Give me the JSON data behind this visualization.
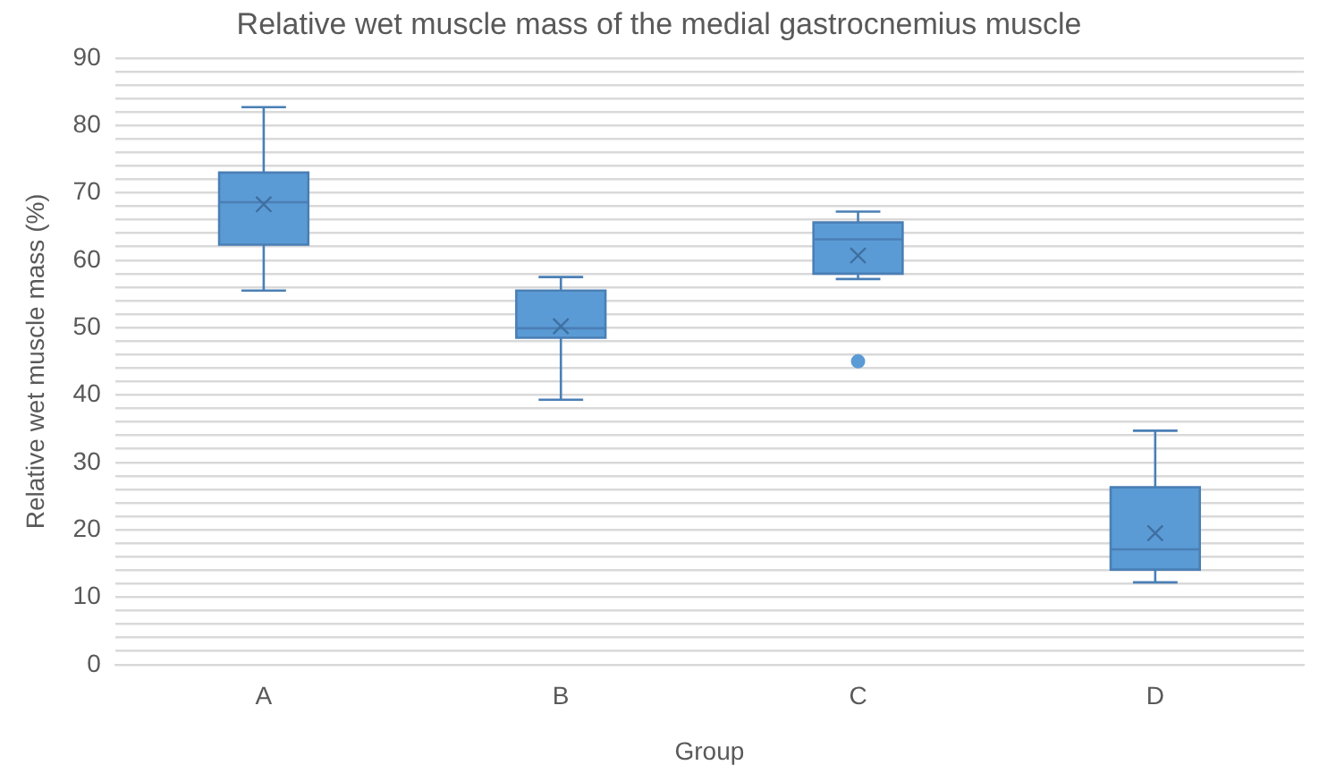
{
  "chart_data": {
    "type": "box",
    "title": "Relative wet muscle mass of the medial gastrocnemius muscle",
    "xlabel": "Group",
    "ylabel": "Relative wet muscle mass (%)",
    "categories": [
      "A",
      "B",
      "C",
      "D"
    ],
    "series": [
      {
        "color": "#5b9bd5",
        "boxes": [
          {
            "low": 55.5,
            "q1": 62.3,
            "median": 68.6,
            "q3": 73,
            "high": 82.7,
            "mean": 68.3
          },
          {
            "low": 39.3,
            "q1": 48.5,
            "median": 49.9,
            "q3": 55.5,
            "high": 57.5,
            "mean": 50.2
          },
          {
            "low": 57.2,
            "q1": 58,
            "median": 63.1,
            "q3": 65.6,
            "high": 67.2,
            "mean": 60.7,
            "outliers": [
              45
            ]
          },
          {
            "low": 12.2,
            "q1": 14.1,
            "median": 17.1,
            "q3": 26.3,
            "high": 34.7,
            "mean": 19.5
          }
        ]
      }
    ],
    "ylim": [
      0,
      90
    ],
    "yticks": [
      0,
      {
        "value": 2,
        "label": null
      },
      {
        "value": 4,
        "label": null
      },
      {
        "value": 6,
        "label": null
      },
      {
        "value": 8,
        "label": null
      },
      10,
      {
        "value": 12,
        "label": null
      },
      {
        "value": 14,
        "label": null
      },
      {
        "value": 16,
        "label": null
      },
      {
        "value": 18,
        "label": null
      },
      20,
      {
        "value": 22,
        "label": null
      },
      {
        "value": 24,
        "label": null
      },
      {
        "value": 26,
        "label": null
      },
      {
        "value": 28,
        "label": null
      },
      30,
      {
        "value": 32,
        "label": null
      },
      {
        "value": 34,
        "label": null
      },
      {
        "value": 36,
        "label": null
      },
      {
        "value": 38,
        "label": null
      },
      40,
      {
        "value": 42,
        "label": null
      },
      {
        "value": 44,
        "label": null
      },
      {
        "value": 46,
        "label": null
      },
      {
        "value": 48,
        "label": null
      },
      50,
      {
        "value": 52,
        "label": null
      },
      {
        "value": 54,
        "label": null
      },
      {
        "value": 56,
        "label": null
      },
      {
        "value": 58,
        "label": null
      },
      60,
      {
        "value": 62,
        "label": null
      },
      {
        "value": 64,
        "label": null
      },
      {
        "value": 66,
        "label": null
      },
      {
        "value": 68,
        "label": null
      },
      70,
      {
        "value": 72,
        "label": null
      },
      {
        "value": 74,
        "label": null
      },
      {
        "value": 76,
        "label": null
      },
      {
        "value": 78,
        "label": null
      },
      80,
      {
        "value": 82,
        "label": null
      },
      {
        "value": 84,
        "label": null
      },
      {
        "value": 86,
        "label": null
      },
      {
        "value": 88,
        "label": null
      },
      90
    ],
    "grid": "y",
    "legend": false,
    "marker": "cross"
  }
}
